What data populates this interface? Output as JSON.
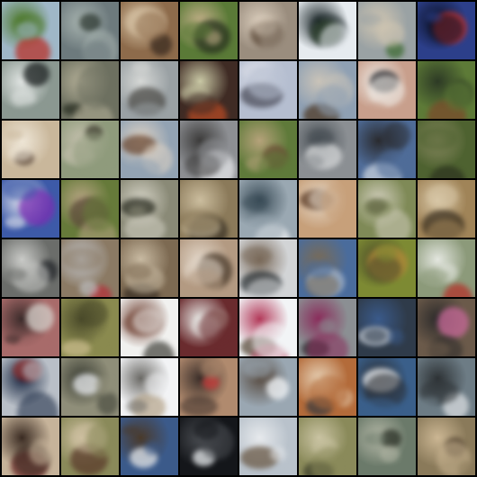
{
  "grid": {
    "rows": 8,
    "cols": 8,
    "tiles": [
      {
        "bg": "#9fb7c7",
        "fg": "#b8322a",
        "accent": "#4f7a2e"
      },
      {
        "bg": "#6d7a7d",
        "fg": "#2f3a33",
        "accent": "#a8b4b0"
      },
      {
        "bg": "#8d6b4b",
        "fg": "#3a2b20",
        "accent": "#d9c6a8"
      },
      {
        "bg": "#5a7a37",
        "fg": "#2a3320",
        "accent": "#c4b08a"
      },
      {
        "bg": "#9a8d7e",
        "fg": "#5c4a3a",
        "accent": "#d9ccbb"
      },
      {
        "bg": "#e6ebef",
        "fg": "#3d5a2a",
        "accent": "#1f2a2c"
      },
      {
        "bg": "#9aa2a4",
        "fg": "#3e6b33",
        "accent": "#d2c7b2"
      },
      {
        "bg": "#2c3f8a",
        "fg": "#c8332e",
        "accent": "#0b1022"
      },
      {
        "bg": "#8b9891",
        "fg": "#1a1f1f",
        "accent": "#e1e5e3"
      },
      {
        "bg": "#6d7060",
        "fg": "#2b3024",
        "accent": "#b7b29a"
      },
      {
        "bg": "#9aa1a4",
        "fg": "#4f4e4a",
        "accent": "#d5d7d5"
      },
      {
        "bg": "#3f2b24",
        "fg": "#b54a24",
        "accent": "#c9c8a5"
      },
      {
        "bg": "#b5bed0",
        "fg": "#4b4d5a",
        "accent": "#d9dce6"
      },
      {
        "bg": "#8fa0b3",
        "fg": "#4f3b28",
        "accent": "#c9c3b8"
      },
      {
        "bg": "#c89f8c",
        "fg": "#26262b",
        "accent": "#f0eee9"
      },
      {
        "bg": "#5d7a37",
        "fg": "#7a4b2b",
        "accent": "#2d3a25"
      },
      {
        "bg": "#c9b79b",
        "fg": "#5a4637",
        "accent": "#efe7d8"
      },
      {
        "bg": "#8f9b7c",
        "fg": "#3c3a2d",
        "accent": "#c7c2b0"
      },
      {
        "bg": "#93a3b3",
        "fg": "#6b4a35",
        "accent": "#e0d4c5"
      },
      {
        "bg": "#8d8f93",
        "fg": "#e6e7ea",
        "accent": "#3b3a39"
      },
      {
        "bg": "#5f7a3a",
        "fg": "#6b4c36",
        "accent": "#b5a27a"
      },
      {
        "bg": "#8b8f93",
        "fg": "#d6d8d9",
        "accent": "#474e54"
      },
      {
        "bg": "#4f6c98",
        "fg": "#c7d0dc",
        "accent": "#2a2b2f"
      },
      {
        "bg": "#4e6230",
        "fg": "#2e3520",
        "accent": "#8a8a62"
      },
      {
        "bg": "#3d5aa8",
        "fg": "#7b2fb3",
        "accent": "#e7e9f0"
      },
      {
        "bg": "#667a3a",
        "fg": "#5a4a38",
        "accent": "#b7a583"
      },
      {
        "bg": "#8a8a77",
        "fg": "#2e3024",
        "accent": "#d4d2c5"
      },
      {
        "bg": "#8b7a5a",
        "fg": "#3b3326",
        "accent": "#cbbd9e"
      },
      {
        "bg": "#9aa8b2",
        "fg": "#f2f4f6",
        "accent": "#3a4c57"
      },
      {
        "bg": "#c7a07a",
        "fg": "#5a3a25",
        "accent": "#e6d9c9"
      },
      {
        "bg": "#7f8a57",
        "fg": "#3d3b2b",
        "accent": "#d0cdbb"
      },
      {
        "bg": "#a08458",
        "fg": "#3e3323",
        "accent": "#d7c6a6"
      },
      {
        "bg": "#6b6d6a",
        "fg": "#23262a",
        "accent": "#c9cac7"
      },
      {
        "bg": "#8b7a64",
        "fg": "#b3323a",
        "accent": "#c7ccd4"
      },
      {
        "bg": "#7d6a52",
        "fg": "#3b3025",
        "accent": "#c9bba3"
      },
      {
        "bg": "#b39a82",
        "fg": "#4a3b2c",
        "accent": "#e2d6c8"
      },
      {
        "bg": "#d2d4d6",
        "fg": "#2e3437",
        "accent": "#7a6a5a"
      },
      {
        "bg": "#4a6c9c",
        "fg": "#a7b6c9",
        "accent": "#7a6b55"
      },
      {
        "bg": "#7d8a33",
        "fg": "#b58b3a",
        "accent": "#4a4a2a"
      },
      {
        "bg": "#8c9a7a",
        "fg": "#b3332b",
        "accent": "#e3e6df"
      },
      {
        "bg": "#a86b6a",
        "fg": "#d6d2cc",
        "accent": "#3b2b2a"
      },
      {
        "bg": "#8a8a4f",
        "fg": "#c7b98a",
        "accent": "#4a4a2a"
      },
      {
        "bg": "#f1f1ef",
        "fg": "#4a4a44",
        "accent": "#6b3a2b"
      },
      {
        "bg": "#6a2b2e",
        "fg": "#c2b3a8",
        "accent": "#e7e7e4"
      },
      {
        "bg": "#f2f4f6",
        "fg": "#5a4b3a",
        "accent": "#b33a5a"
      },
      {
        "bg": "#8b8f93",
        "fg": "#2b2a2d",
        "accent": "#8a2b5a"
      },
      {
        "bg": "#2f3b4a",
        "fg": "#c9cfd6",
        "accent": "#3a5a8a"
      },
      {
        "bg": "#6b5a4a",
        "fg": "#c96a9a",
        "accent": "#2b2a2a"
      },
      {
        "bg": "#b9bfc7",
        "fg": "#8a2b2b",
        "accent": "#1b2a44"
      },
      {
        "bg": "#8f8e79",
        "fg": "#e9ebee",
        "accent": "#3a3d33"
      },
      {
        "bg": "#f2f3f5",
        "fg": "#b8a88f",
        "accent": "#6b6a66"
      },
      {
        "bg": "#b08a6e",
        "fg": "#c73b3a",
        "accent": "#3b2f2a"
      },
      {
        "bg": "#9aa7b2",
        "fg": "#f3f5f7",
        "accent": "#5a4e44"
      },
      {
        "bg": "#b36b3a",
        "fg": "#3a3b3e",
        "accent": "#e6d0b4"
      },
      {
        "bg": "#3a5f8a",
        "fg": "#eef1f4",
        "accent": "#2a2c30"
      },
      {
        "bg": "#6d7c85",
        "fg": "#d9dde0",
        "accent": "#2e3336"
      },
      {
        "bg": "#c6b39a",
        "fg": "#6b2b2a",
        "accent": "#3a2b22"
      },
      {
        "bg": "#8a8a5a",
        "fg": "#5a3b2b",
        "accent": "#cdbfa0"
      },
      {
        "bg": "#3b5a8a",
        "fg": "#e4e7ea",
        "accent": "#4a3a2b"
      },
      {
        "bg": "#14161a",
        "fg": "#e9ecef",
        "accent": "#4a4d52"
      },
      {
        "bg": "#b9c2cb",
        "fg": "#6b5a47",
        "accent": "#e6e9ec"
      },
      {
        "bg": "#8a8a5a",
        "fg": "#3d3f2b",
        "accent": "#c9c3a2"
      },
      {
        "bg": "#6b7a6a",
        "fg": "#2a3026",
        "accent": "#b6b9a8"
      },
      {
        "bg": "#8a7a5a",
        "fg": "#4a3b2a",
        "accent": "#cbb693"
      }
    ]
  }
}
